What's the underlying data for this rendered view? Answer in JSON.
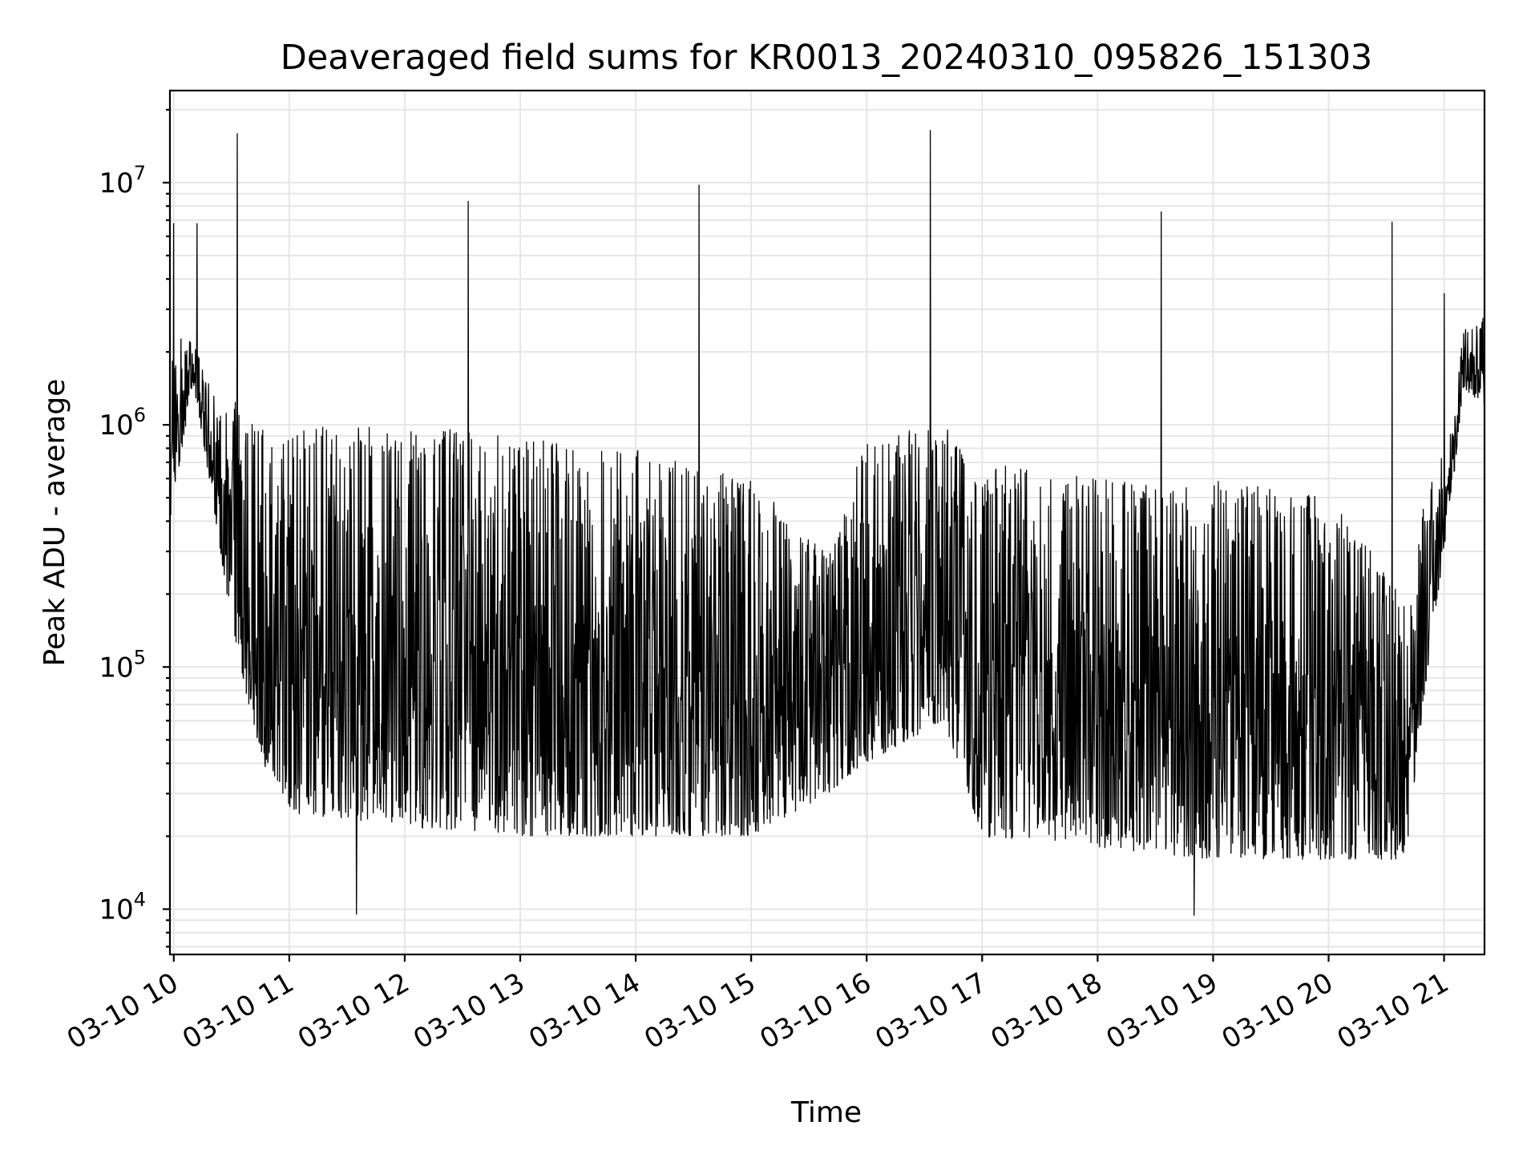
{
  "chart_data": {
    "type": "line",
    "title": "Deaveraged field sums for KR0013_20240310_095826_151303",
    "xlabel": "Time",
    "ylabel": "Peak ADU - average",
    "yscale": "log",
    "xlim": [
      "03-10 09:58",
      "03-10 21:21"
    ],
    "ylim": [
      6500,
      24000000
    ],
    "grid": true,
    "x_ticks": [
      "03-10 10",
      "03-10 11",
      "03-10 12",
      "03-10 13",
      "03-10 14",
      "03-10 15",
      "03-10 16",
      "03-10 17",
      "03-10 18",
      "03-10 19",
      "03-10 20",
      "03-10 21"
    ],
    "y_ticks": [
      {
        "base": "10",
        "exp": "4",
        "value": 10000
      },
      {
        "base": "10",
        "exp": "5",
        "value": 100000
      },
      {
        "base": "10",
        "exp": "6",
        "value": 1000000
      },
      {
        "base": "10",
        "exp": "7",
        "value": 10000000
      }
    ],
    "series": [
      {
        "color": "#000000",
        "baseline_envelope": [
          {
            "t": "03-10 09:58",
            "low": 400000,
            "high": 2500000
          },
          {
            "t": "03-10 10:10",
            "low": 1500000,
            "high": 2200000
          },
          {
            "t": "03-10 10:20",
            "low": 500000,
            "high": 1400000
          },
          {
            "t": "03-10 10:30",
            "low": 150000,
            "high": 1300000
          },
          {
            "t": "03-10 10:45",
            "low": 40000,
            "high": 1000000
          },
          {
            "t": "03-10 11:00",
            "low": 25000,
            "high": 1000000
          },
          {
            "t": "03-10 12:00",
            "low": 22000,
            "high": 1000000
          },
          {
            "t": "03-10 13:00",
            "low": 20000,
            "high": 900000
          },
          {
            "t": "03-10 14:00",
            "low": 20000,
            "high": 800000
          },
          {
            "t": "03-10 15:00",
            "low": 20000,
            "high": 600000
          },
          {
            "t": "03-10 15:40",
            "low": 30000,
            "high": 300000
          },
          {
            "t": "03-10 16:00",
            "low": 40000,
            "high": 900000
          },
          {
            "t": "03-10 16:40",
            "low": 60000,
            "high": 1000000
          },
          {
            "t": "03-10 17:00",
            "low": 20000,
            "high": 700000
          },
          {
            "t": "03-10 18:00",
            "low": 18000,
            "high": 600000
          },
          {
            "t": "03-10 19:00",
            "low": 16000,
            "high": 600000
          },
          {
            "t": "03-10 20:00",
            "low": 16000,
            "high": 500000
          },
          {
            "t": "03-10 20:40",
            "low": 16000,
            "high": 200000
          },
          {
            "t": "03-10 20:50",
            "low": 80000,
            "high": 500000
          },
          {
            "t": "03-10 21:05",
            "low": 600000,
            "high": 1000000
          },
          {
            "t": "03-10 21:10",
            "low": 1400000,
            "high": 2500000
          },
          {
            "t": "03-10 21:21",
            "low": 1200000,
            "high": 2800000
          }
        ],
        "spikes": [
          {
            "t": "03-10 10:00",
            "value": 6800000
          },
          {
            "t": "03-10 10:12",
            "value": 6800000
          },
          {
            "t": "03-10 10:33",
            "value": 16000000
          },
          {
            "t": "03-10 11:35",
            "value": 9500
          },
          {
            "t": "03-10 12:33",
            "value": 8400000
          },
          {
            "t": "03-10 14:33",
            "value": 9800000
          },
          {
            "t": "03-10 16:33",
            "value": 16500000
          },
          {
            "t": "03-10 18:33",
            "value": 7600000
          },
          {
            "t": "03-10 18:50",
            "value": 9400
          },
          {
            "t": "03-10 20:33",
            "value": 6900000
          },
          {
            "t": "03-10 21:00",
            "value": 3500000
          }
        ]
      }
    ]
  }
}
